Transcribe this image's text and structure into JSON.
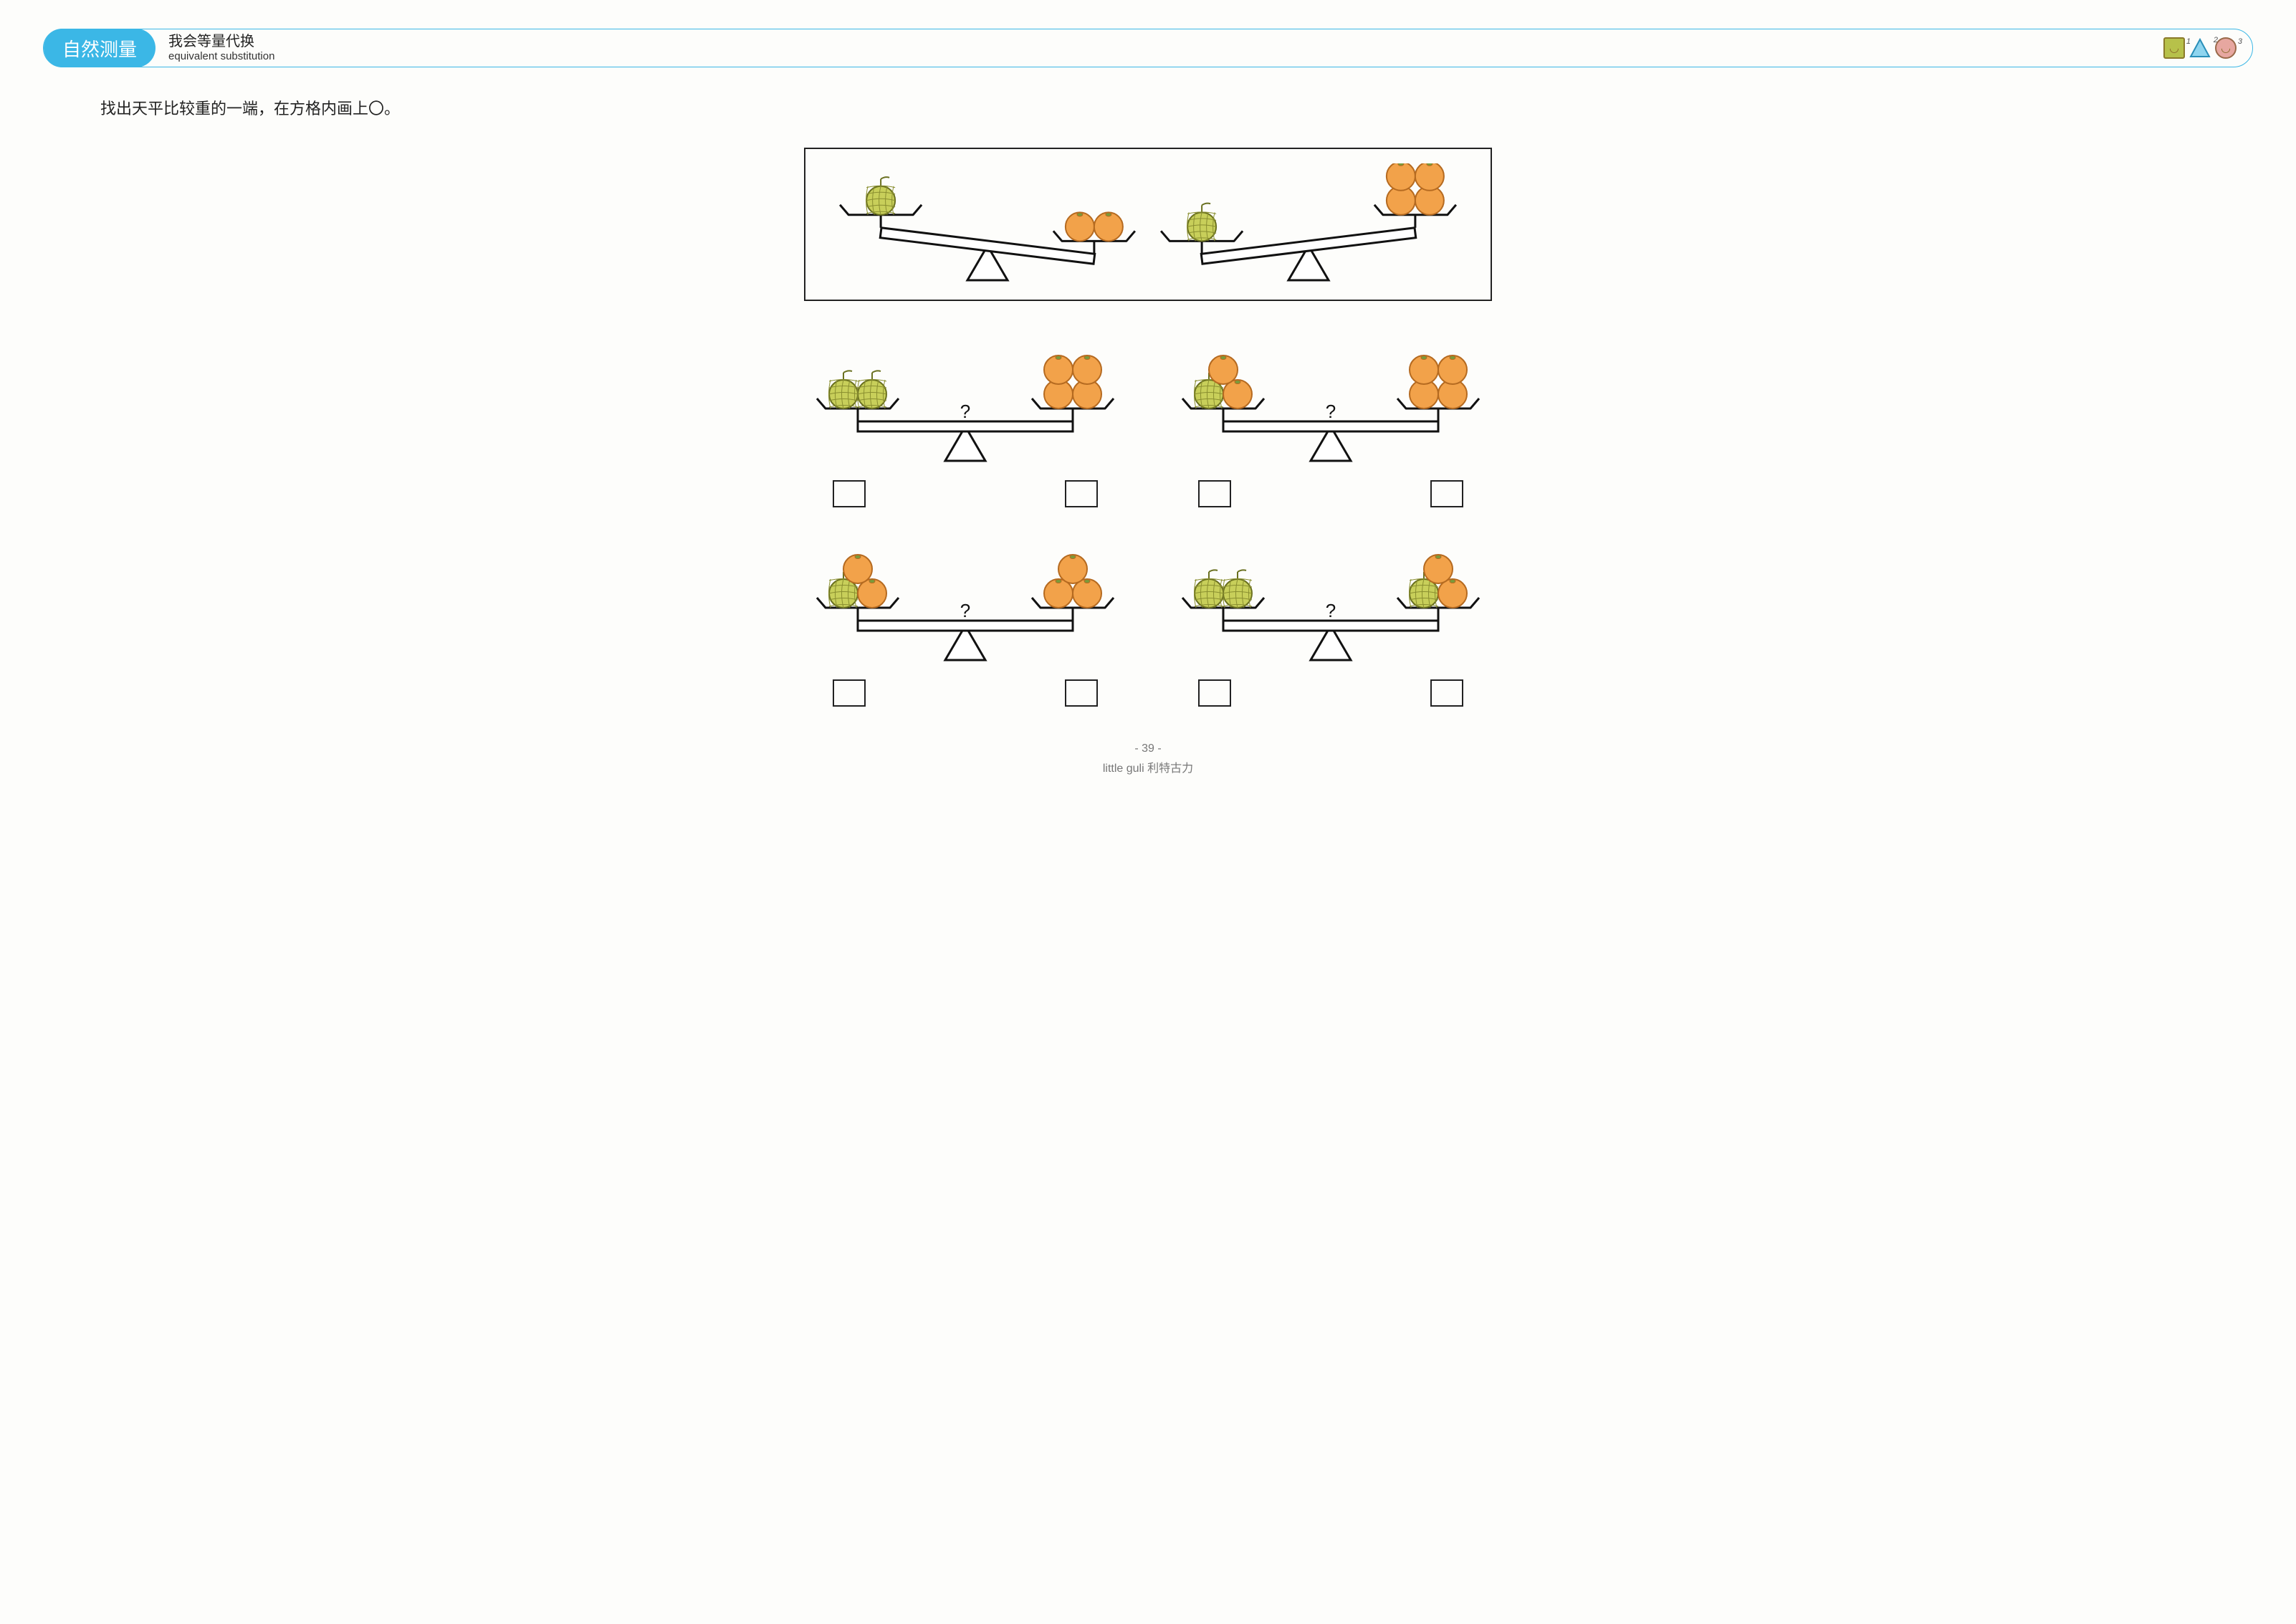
{
  "header": {
    "category": "自然测量",
    "title_cn": "我会等量代换",
    "title_en": "equivalent substitution",
    "legend": [
      {
        "shape": "square",
        "num": "1"
      },
      {
        "shape": "triangle",
        "num": "2"
      },
      {
        "shape": "circle",
        "num": "3"
      }
    ]
  },
  "instruction": "找出天平比较重的一端，在方格内画上〇。",
  "colors": {
    "melon_fill": "#c8cf5a",
    "melon_stroke": "#6a7020",
    "melon_hatch": "#8a8f30",
    "orange_fill": "#f2a24a",
    "orange_stroke": "#b56a20",
    "outline": "#111111",
    "pill": "#3bb7e6"
  },
  "reference": [
    {
      "tilt": "left",
      "left": {
        "items": [
          "melon"
        ]
      },
      "right": {
        "items": [
          "orange",
          "orange"
        ]
      }
    },
    {
      "tilt": "right",
      "left": {
        "items": [
          "melon"
        ]
      },
      "right": {
        "items": [
          "orange",
          "orange",
          "orange",
          "orange"
        ]
      }
    }
  ],
  "problems": [
    {
      "question_mark": "?",
      "left": {
        "items": [
          "melon",
          "melon"
        ]
      },
      "right": {
        "items": [
          "orange",
          "orange",
          "orange",
          "orange"
        ]
      }
    },
    {
      "question_mark": "?",
      "left": {
        "items": [
          "melon",
          "orange",
          "orange"
        ]
      },
      "right": {
        "items": [
          "orange",
          "orange",
          "orange",
          "orange"
        ]
      }
    },
    {
      "question_mark": "?",
      "left": {
        "items": [
          "melon",
          "orange",
          "orange"
        ]
      },
      "right": {
        "items": [
          "orange",
          "orange",
          "orange"
        ]
      }
    },
    {
      "question_mark": "?",
      "left": {
        "items": [
          "melon",
          "melon"
        ]
      },
      "right": {
        "items": [
          "melon",
          "orange",
          "orange"
        ]
      }
    }
  ],
  "footer": {
    "page": "- 39 -",
    "brand": "little guli  利特古力"
  }
}
